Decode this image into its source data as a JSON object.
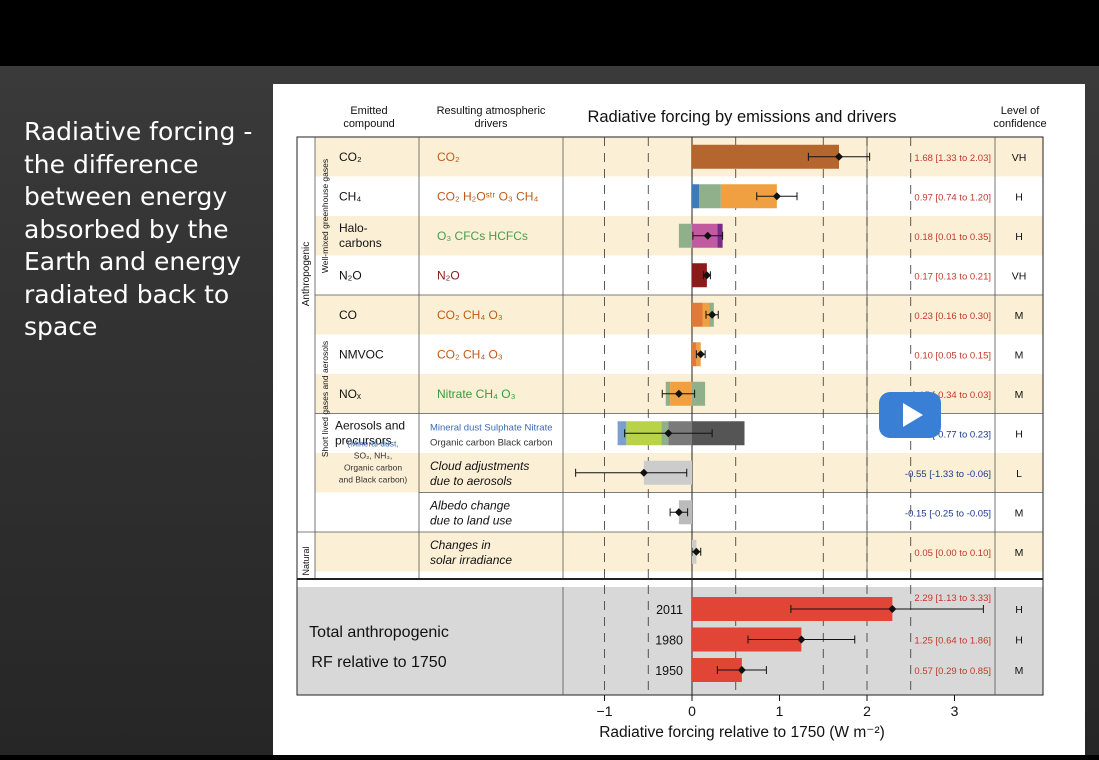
{
  "slide": {
    "text": "Radiative forcing - the difference between energy absorbed by the Earth and energy radiated back to space"
  },
  "figure": {
    "header_compound": [
      "Emitted",
      "compound"
    ],
    "header_drivers": [
      "Resulting atmospheric",
      "drivers"
    ],
    "title": "Radiative forcing by emissions and drivers",
    "header_confidence": [
      "Level of",
      "confidence"
    ],
    "group_anthropogenic": "Anthropogenic",
    "group_natural": "Natural",
    "group_wmghg": "Well-mixed greenhouse gases",
    "group_sl": "Short lived gases and aerosols",
    "rows": [
      {
        "compound": [
          "CO₂"
        ],
        "drivers": "CO₂",
        "value": "1.68 [1.33 to 2.03]",
        "conf": "VH"
      },
      {
        "compound": [
          "CH₄"
        ],
        "drivers": "CO₂  H₂Oˢᵗʳ  O₃  CH₄",
        "value": "0.97 [0.74 to 1.20]",
        "conf": "H"
      },
      {
        "compound": [
          "Halo-",
          "carbons"
        ],
        "drivers": "O₃  CFCs  HCFCs",
        "value": "0.18 [0.01 to 0.35]",
        "conf": "H"
      },
      {
        "compound": [
          "N₂O"
        ],
        "drivers": "N₂O",
        "value": "0.17 [0.13 to 0.21]",
        "conf": "VH"
      },
      {
        "compound": [
          "CO"
        ],
        "drivers": "CO₂  CH₄  O₃",
        "value": "0.23 [0.16 to 0.30]",
        "conf": "M"
      },
      {
        "compound": [
          "NMVOC"
        ],
        "drivers": "CO₂  CH₄  O₃",
        "value": "0.10 [0.05 to 0.15]",
        "conf": "M"
      },
      {
        "compound": [
          "NOₓ"
        ],
        "drivers": "Nitrate  CH₄  O₃",
        "value": "-0.15 [-0.34 to 0.03]",
        "conf": "M"
      },
      {
        "compound": [
          "Aerosols and",
          "precursors"
        ],
        "drivers": "Mineral dust  Sulphate  Nitrate",
        "drivers2": "Organic carbon  Black carbon",
        "value": "-0.27 [-0.77 to 0.23]",
        "conf": "H"
      },
      {
        "compound": [],
        "drivers": "Cloud adjustments",
        "drivers2": "due to aerosols",
        "value": "-0.55 [-1.33 to -0.06]",
        "conf": "L"
      },
      {
        "compound": [],
        "drivers": "Albedo change",
        "drivers2": "due to land use",
        "value": "-0.15 [-0.25 to -0.05]",
        "conf": "M"
      },
      {
        "compound": [],
        "drivers": "Changes in",
        "drivers2": "solar irradiance",
        "value": "0.05 [0.00 to 0.10]",
        "conf": "M"
      }
    ],
    "aerosol_sub": [
      "(Mineral dust,",
      "SO₂, NH₃,",
      "Organic carbon",
      "and Black carbon)"
    ],
    "total_label": [
      "Total anthropogenic",
      "RF relative to 1750"
    ],
    "totals": [
      {
        "year": "2011",
        "value": "2.29 [1.13 to 3.33]",
        "conf": "H"
      },
      {
        "year": "1980",
        "value": "1.25 [0.64 to 1.86]",
        "conf": "H"
      },
      {
        "year": "1950",
        "value": "0.57 [0.29 to 0.85]",
        "conf": "M"
      }
    ],
    "xlabel": "Radiative forcing relative to 1750 (W m⁻²)",
    "ticks": [
      "−1",
      "0",
      "1",
      "2",
      "3"
    ]
  },
  "chart_data": {
    "type": "bar",
    "title": "Radiative forcing by emissions and drivers",
    "xlabel": "Radiative forcing relative to 1750 (W m⁻²)",
    "xlim": [
      -1.7,
      3.4
    ],
    "categories": [
      "CO2",
      "CH4",
      "Halo-carbons",
      "N2O",
      "CO",
      "NMVOC",
      "NOx",
      "Aerosols and precursors",
      "Cloud adjustments due to aerosols",
      "Albedo change due to land use",
      "Changes in solar irradiance",
      "2011",
      "1980",
      "1950"
    ],
    "values": [
      1.68,
      0.97,
      0.18,
      0.17,
      0.23,
      0.1,
      -0.15,
      -0.27,
      -0.55,
      -0.15,
      0.05,
      2.29,
      1.25,
      0.57
    ],
    "lower": [
      1.33,
      0.74,
      0.01,
      0.13,
      0.16,
      0.05,
      -0.34,
      -0.77,
      -1.33,
      -0.25,
      0.0,
      1.13,
      0.64,
      0.29
    ],
    "upper": [
      2.03,
      1.2,
      0.35,
      0.21,
      0.3,
      0.15,
      0.03,
      0.23,
      -0.06,
      -0.05,
      0.1,
      3.33,
      1.86,
      0.85
    ],
    "confidence": [
      "VH",
      "H",
      "H",
      "VH",
      "M",
      "M",
      "M",
      "H",
      "L",
      "M",
      "M",
      "H",
      "H",
      "M"
    ],
    "segments": [
      [
        {
          "color": "#b5662f",
          "from": 0,
          "to": 1.68
        }
      ],
      [
        {
          "color": "#3d7ab8",
          "from": 0,
          "to": 0.08
        },
        {
          "color": "#8fb08a",
          "from": 0.08,
          "to": 0.33
        },
        {
          "color": "#f0a040",
          "from": 0.33,
          "to": 0.97
        }
      ],
      [
        {
          "color": "#8fb08a",
          "from": -0.15,
          "to": 0
        },
        {
          "color": "#c25aa0",
          "from": 0,
          "to": 0.29
        },
        {
          "color": "#7a2a8a",
          "from": 0.29,
          "to": 0.35
        }
      ],
      [
        {
          "color": "#8b1a1a",
          "from": 0,
          "to": 0.17
        }
      ],
      [
        {
          "color": "#e07a3a",
          "from": 0,
          "to": 0.12
        },
        {
          "color": "#f0a040",
          "from": 0.12,
          "to": 0.2
        },
        {
          "color": "#8fb08a",
          "from": 0.2,
          "to": 0.25
        }
      ],
      [
        {
          "color": "#e07a3a",
          "from": 0,
          "to": 0.05
        },
        {
          "color": "#f0a040",
          "from": 0.05,
          "to": 0.1
        }
      ],
      [
        {
          "color": "#8fb08a",
          "from": -0.3,
          "to": -0.25
        },
        {
          "color": "#f0a040",
          "from": -0.25,
          "to": 0
        },
        {
          "color": "#8fb08a",
          "from": 0,
          "to": 0.15
        }
      ],
      [
        {
          "color": "#7aa0d0",
          "from": -0.85,
          "to": -0.75
        },
        {
          "color": "#b8d24a",
          "from": -0.75,
          "to": -0.35
        },
        {
          "color": "#8fb08a",
          "from": -0.35,
          "to": -0.27
        },
        {
          "color": "#7a7a7a",
          "from": -0.27,
          "to": 0
        },
        {
          "color": "#555555",
          "from": 0,
          "to": 0.6
        }
      ],
      [
        {
          "color": "#cccccc",
          "from": -0.55,
          "to": 0
        }
      ],
      [
        {
          "color": "#bbbbbb",
          "from": -0.15,
          "to": 0
        }
      ],
      [
        {
          "color": "#cccccc",
          "from": 0,
          "to": 0.05
        }
      ],
      [
        {
          "color": "#e04535",
          "from": 0,
          "to": 2.29
        }
      ],
      [
        {
          "color": "#e04535",
          "from": 0,
          "to": 1.25
        }
      ],
      [
        {
          "color": "#e04535",
          "from": 0,
          "to": 0.57
        }
      ]
    ]
  }
}
